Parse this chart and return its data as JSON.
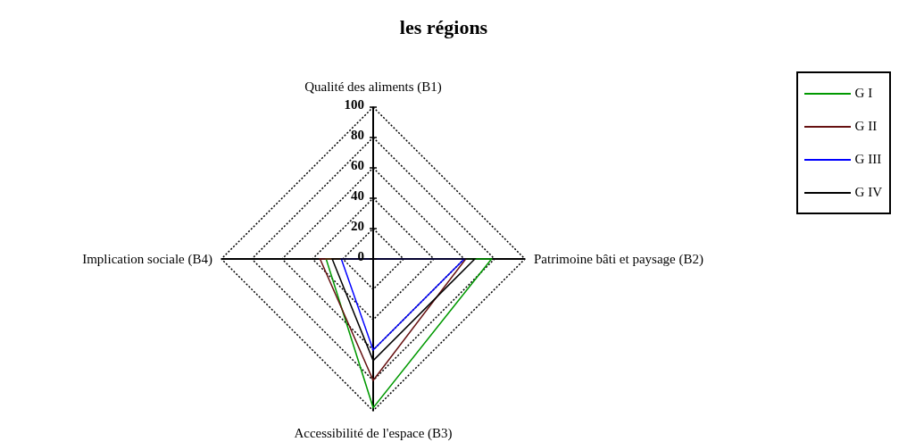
{
  "chart_data": {
    "type": "radar",
    "title": "les régions",
    "categories": [
      "Qualité des aliments (B1)",
      "Patrimoine bâti et paysage (B2)",
      "Accessibilité de l'espace (B3)",
      "Implication sociale (B4)"
    ],
    "series": [
      {
        "name": "G I",
        "color": "#009900",
        "values": [
          0,
          78,
          98,
          31
        ]
      },
      {
        "name": "G II",
        "color": "#661111",
        "values": [
          0,
          61,
          80,
          35
        ]
      },
      {
        "name": "G III",
        "color": "#0000ff",
        "values": [
          0,
          60,
          60,
          21
        ]
      },
      {
        "name": "G IV",
        "color": "#000000",
        "values": [
          0,
          67,
          67,
          27
        ]
      }
    ],
    "ylim": [
      0,
      100
    ],
    "yticks": [
      0,
      20,
      40,
      60,
      80,
      100
    ],
    "grid": true,
    "legend": "top right"
  }
}
